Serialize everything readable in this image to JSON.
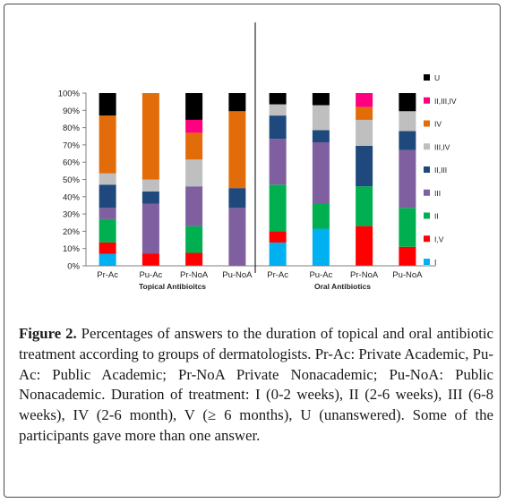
{
  "chart_data": {
    "type": "bar",
    "stacked": true,
    "ylim": [
      0,
      100
    ],
    "yticks": [
      "0%",
      "10%",
      "20%",
      "30%",
      "40%",
      "50%",
      "60%",
      "70%",
      "80%",
      "90%",
      "100%"
    ],
    "grid": false,
    "legend_position": "right",
    "panels": [
      {
        "label": "Topical Antibioitcs",
        "categories": [
          "Pr-Ac",
          "Pu-Ac",
          "Pr-NoA",
          "Pu-NoA"
        ],
        "series": [
          {
            "name": "I",
            "color": "#00b0f0",
            "values": [
              7,
              0,
              0,
              0
            ]
          },
          {
            "name": "I,V",
            "color": "#ff0000",
            "values": [
              6.5,
              7,
              7.5,
              0
            ]
          },
          {
            "name": "II",
            "color": "#00b050",
            "values": [
              13.5,
              0,
              15.5,
              0
            ]
          },
          {
            "name": "III",
            "color": "#7f5fa0",
            "values": [
              6.5,
              29,
              23,
              33.5
            ]
          },
          {
            "name": "II,III",
            "color": "#1f497d",
            "values": [
              13.5,
              7,
              0,
              11.5
            ]
          },
          {
            "name": "III,IV",
            "color": "#bfbfbf",
            "values": [
              6.5,
              7,
              15.5,
              0
            ]
          },
          {
            "name": "IV",
            "color": "#e36c0a",
            "values": [
              33.5,
              50,
              15.5,
              44.5
            ]
          },
          {
            "name": "II,III,IV",
            "color": "#ff0080",
            "values": [
              0,
              0,
              7.5,
              0
            ]
          },
          {
            "name": "U",
            "color": "#000000",
            "values": [
              13,
              0,
              15.5,
              10.5
            ]
          }
        ]
      },
      {
        "label": "Oral Antibiotics",
        "categories": [
          "Pr-Ac",
          "Pu-Ac",
          "Pr-NoA",
          "Pu-NoA"
        ],
        "series": [
          {
            "name": "I",
            "color": "#00b0f0",
            "values": [
              13.5,
              21.5,
              0,
              0
            ]
          },
          {
            "name": "I,V",
            "color": "#ff0000",
            "values": [
              6.5,
              0,
              23,
              11
            ]
          },
          {
            "name": "II",
            "color": "#00b050",
            "values": [
              27,
              14.5,
              23,
              22.5
            ]
          },
          {
            "name": "III",
            "color": "#7f5fa0",
            "values": [
              26.5,
              35.5,
              0,
              33.5
            ]
          },
          {
            "name": "II,III",
            "color": "#1f497d",
            "values": [
              13.5,
              7,
              23.5,
              11
            ]
          },
          {
            "name": "III,IV",
            "color": "#bfbfbf",
            "values": [
              6.5,
              14.5,
              15,
              11.5
            ]
          },
          {
            "name": "IV",
            "color": "#e36c0a",
            "values": [
              0,
              0,
              7.5,
              0
            ]
          },
          {
            "name": "II,III,IV",
            "color": "#ff0080",
            "values": [
              0,
              0,
              8,
              0
            ]
          },
          {
            "name": "U",
            "color": "#000000",
            "values": [
              6.5,
              7,
              0,
              10.5
            ]
          }
        ]
      }
    ],
    "legend": [
      "U",
      "II,III,IV",
      "IV",
      "III,IV",
      "II,III",
      "III",
      "II",
      "I,V",
      "I"
    ]
  },
  "caption": {
    "label": "Figure 2.",
    "text": " Percentages of answers to the duration of topical and oral antibiotic treatment according to groups of dermatologists. Pr-Ac: Private Academic, Pu-Ac: Public Academic; Pr-NoA Private Nonacademic; Pu-NoA: Public Nonacademic. Duration of treatment: I (0-2 weeks), II (2-6 weeks), III (6-8 weeks), IV (2-6 month), V (≥ 6 months), U (unanswered). Some of the participants gave more than one answer."
  }
}
